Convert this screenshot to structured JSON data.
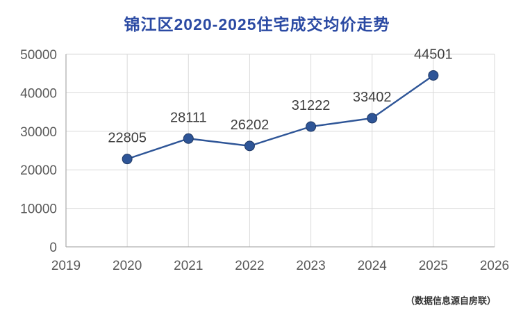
{
  "title": "锦江区2020-2025住宅成交均价走势",
  "footnote": "（数据信息源自房联）",
  "colors": {
    "title": "#2b4aa3",
    "axis_text": "#595959",
    "label_text": "#404040",
    "grid": "#d9d9d9",
    "axis": "#b0b0b0"
  },
  "chart_data": {
    "type": "line",
    "title": "锦江区2020-2025住宅成交均价走势",
    "x": [
      2020,
      2021,
      2022,
      2023,
      2024,
      2025
    ],
    "values": [
      22805,
      28111,
      26202,
      31222,
      33402,
      44501
    ],
    "data_labels": [
      "22805",
      "28111",
      "26202",
      "31222",
      "33402",
      "44501"
    ],
    "x_ticks": [
      2019,
      2020,
      2021,
      2022,
      2023,
      2024,
      2025,
      2026
    ],
    "y_ticks": [
      0,
      10000,
      20000,
      30000,
      40000,
      50000
    ],
    "xlim": [
      2019,
      2026
    ],
    "ylim": [
      0,
      50000
    ],
    "grid": true,
    "legend": "none",
    "line_color": "#2e5597",
    "marker_color": "#2e5597",
    "marker_edge_color": "#1f3864",
    "annotation": "（数据信息源自房联）"
  }
}
